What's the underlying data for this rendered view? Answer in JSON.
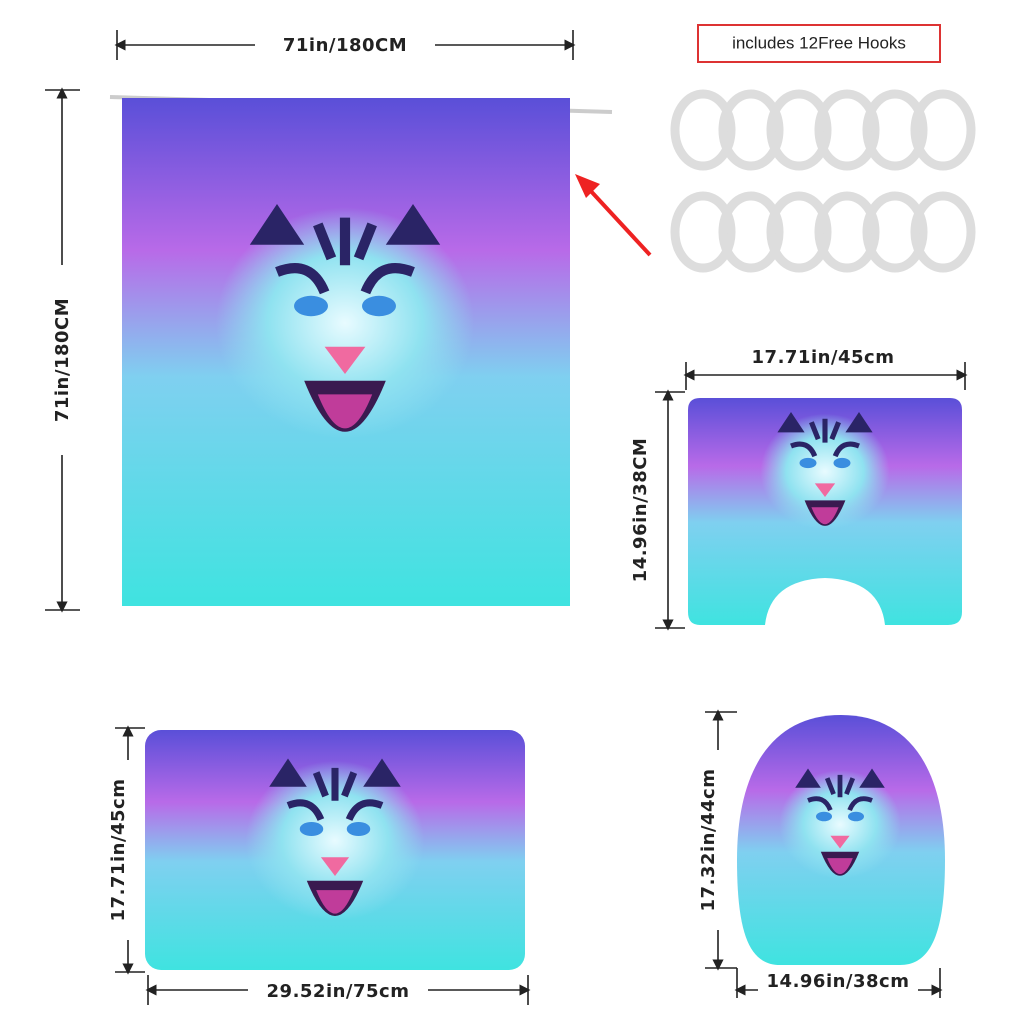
{
  "curtain": {
    "width_label": "71in/180CM",
    "height_label": "71in/180CM"
  },
  "hooks": {
    "label": "includes 12Free Hooks"
  },
  "contour_mat": {
    "width_label": "17.71in/45cm",
    "height_label": "14.96in/38CM"
  },
  "bath_mat": {
    "height_label": "17.71in/45cm",
    "width_label": "29.52in/75cm"
  },
  "lid_cover": {
    "height_label": "17.32in/44cm",
    "width_label": "14.96in/38cm"
  }
}
